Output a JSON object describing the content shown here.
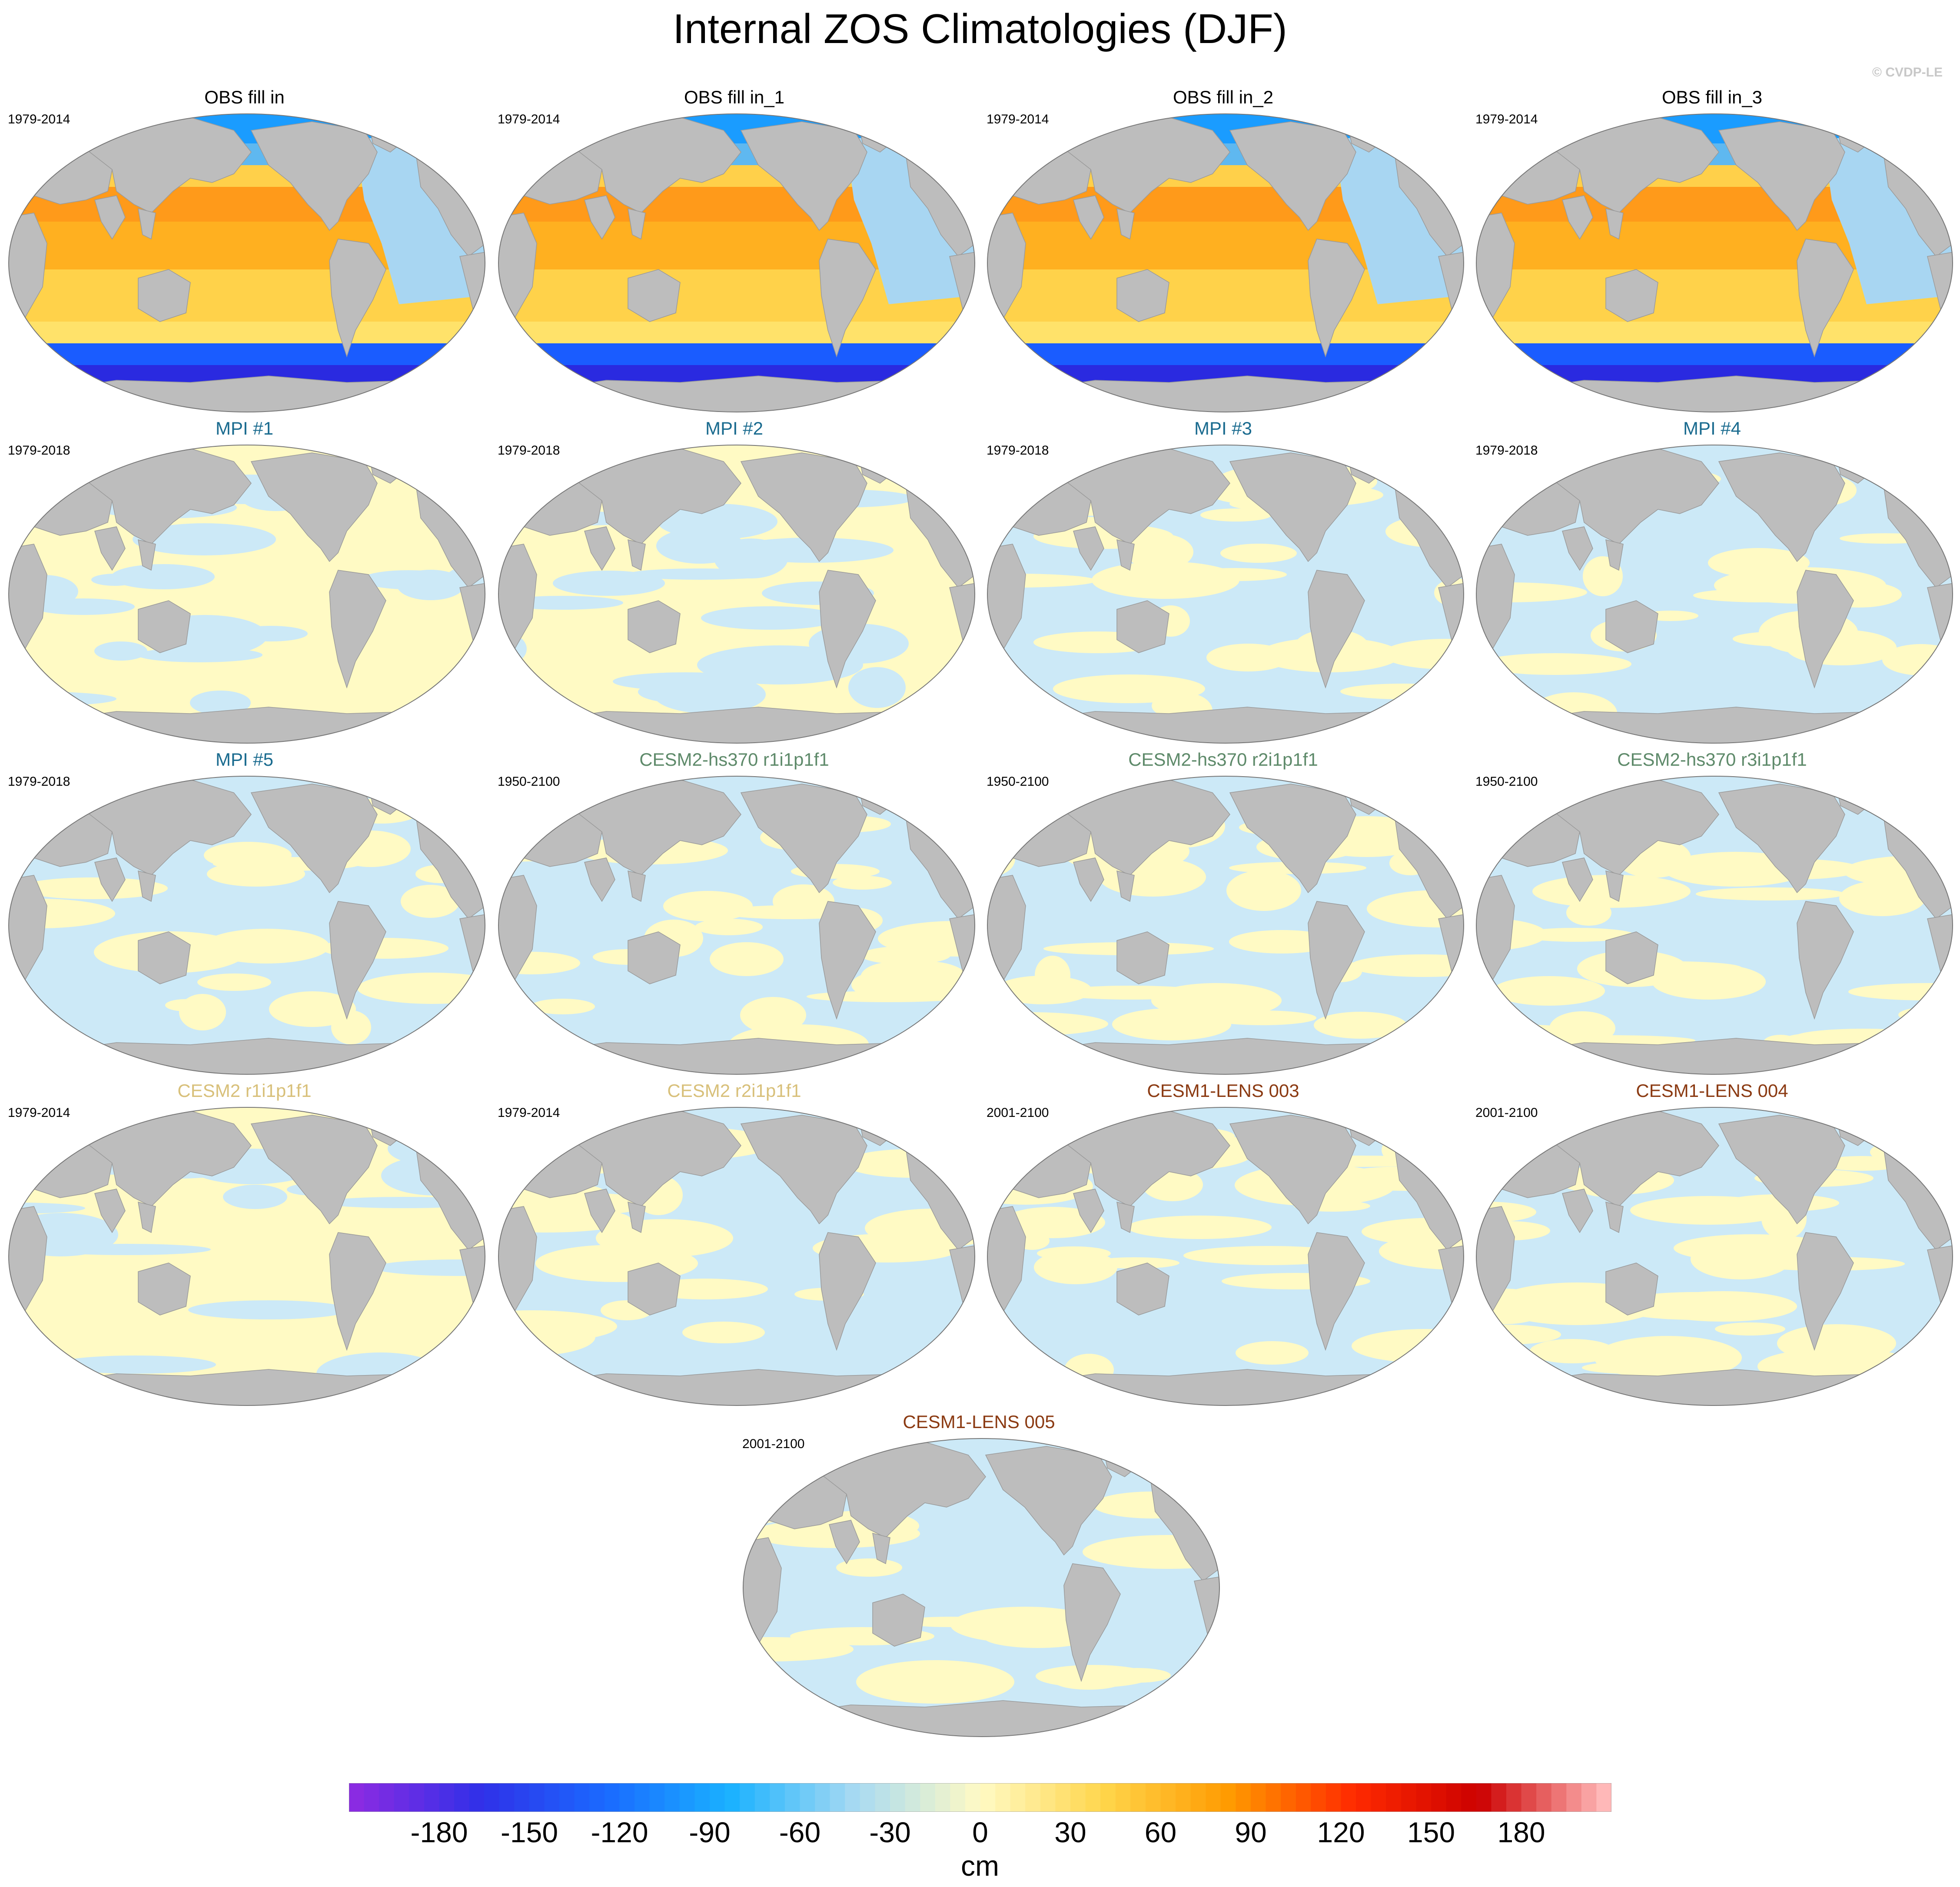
{
  "title": "Internal ZOS Climatologies (DJF)",
  "credit": "© CVDP-LE",
  "colors": {
    "land": "#bdbdbd",
    "ocean_pos": "#fffac4",
    "ocean_neg": "#cce9f7",
    "title_obs": "#000000",
    "title_mpi": "#1a6b8f",
    "title_cesm2hs": "#5e8a6a",
    "title_cesm2": "#d8c07a",
    "title_cesm1": "#8b3a12"
  },
  "panels": [
    {
      "title": "OBS fill in",
      "years": "1979-2014",
      "kind": "obs",
      "title_color": "#000000"
    },
    {
      "title": "OBS fill in_1",
      "years": "1979-2014",
      "kind": "obs",
      "title_color": "#000000"
    },
    {
      "title": "OBS fill in_2",
      "years": "1979-2014",
      "kind": "obs",
      "title_color": "#000000"
    },
    {
      "title": "OBS fill in_3",
      "years": "1979-2014",
      "kind": "obs",
      "title_color": "#000000"
    },
    {
      "title": "MPI #1",
      "years": "1979-2018",
      "kind": "anom",
      "dominant": "pos",
      "title_color": "#1a6b8f"
    },
    {
      "title": "MPI #2",
      "years": "1979-2018",
      "kind": "anom",
      "dominant": "pos",
      "title_color": "#1a6b8f"
    },
    {
      "title": "MPI #3",
      "years": "1979-2018",
      "kind": "anom",
      "dominant": "mix",
      "title_color": "#1a6b8f"
    },
    {
      "title": "MPI #4",
      "years": "1979-2018",
      "kind": "anom",
      "dominant": "neg",
      "title_color": "#1a6b8f"
    },
    {
      "title": "MPI #5",
      "years": "1979-2018",
      "kind": "anom",
      "dominant": "neg",
      "title_color": "#1a6b8f"
    },
    {
      "title": "CESM2-hs370 r1i1p1f1",
      "years": "1950-2100",
      "kind": "anom",
      "dominant": "mix",
      "title_color": "#5e8a6a"
    },
    {
      "title": "CESM2-hs370 r2i1p1f1",
      "years": "1950-2100",
      "kind": "anom",
      "dominant": "mix",
      "title_color": "#5e8a6a"
    },
    {
      "title": "CESM2-hs370 r3i1p1f1",
      "years": "1950-2100",
      "kind": "anom",
      "dominant": "mix",
      "title_color": "#5e8a6a"
    },
    {
      "title": "CESM2 r1i1p1f1",
      "years": "1979-2014",
      "kind": "anom",
      "dominant": "pos",
      "title_color": "#d8c07a"
    },
    {
      "title": "CESM2 r2i1p1f1",
      "years": "1979-2014",
      "kind": "anom",
      "dominant": "neg",
      "title_color": "#d8c07a"
    },
    {
      "title": "CESM1-LENS 003",
      "years": "2001-2100",
      "kind": "anom",
      "dominant": "mix",
      "title_color": "#8b3a12"
    },
    {
      "title": "CESM1-LENS 004",
      "years": "2001-2100",
      "kind": "anom",
      "dominant": "mix",
      "title_color": "#8b3a12"
    },
    {
      "title": "CESM1-LENS 005",
      "years": "2001-2100",
      "kind": "anom",
      "dominant": "neg",
      "title_color": "#8b3a12"
    }
  ],
  "colorbar": {
    "units": "cm",
    "min": -210,
    "max": 210,
    "ticks": [
      "-180",
      "-150",
      "-120",
      "-90",
      "-60",
      "-30",
      "0",
      "30",
      "60",
      "90",
      "120",
      "150",
      "180"
    ],
    "tick_values": [
      -180,
      -150,
      -120,
      -90,
      -60,
      -30,
      0,
      30,
      60,
      90,
      120,
      150,
      180
    ],
    "stops": [
      "#8a2be2",
      "#3030e8",
      "#1a6aff",
      "#1ab2ff",
      "#a8daf2",
      "#fffac4",
      "#ffd54a",
      "#ff9a00",
      "#ff2a00",
      "#cc0000",
      "#ffb8b8"
    ]
  }
}
